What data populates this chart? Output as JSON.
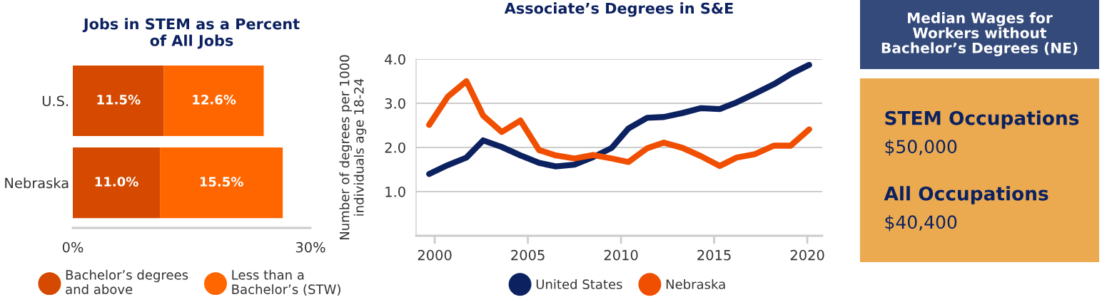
{
  "chart_data": [
    {
      "type": "bar",
      "title": "Jobs in STEM as a Percent\nof All Jobs",
      "orientation": "horizontal",
      "stacked": true,
      "categories": [
        "U.S.",
        "Nebraska"
      ],
      "series": [
        {
          "name": "Bachelor’s degrees\nand above",
          "color": "#d54a00",
          "values": [
            11.5,
            11.0
          ],
          "value_labels": [
            "11.5%",
            "11.0%"
          ]
        },
        {
          "name": "Less than a\nBachelor’s (STW)",
          "color": "#ff6600",
          "values": [
            12.6,
            15.5
          ],
          "value_labels": [
            "12.6%",
            "15.5%"
          ]
        }
      ],
      "xlim": [
        0,
        30
      ],
      "xticks": [
        {
          "value": 0,
          "label": "0%"
        },
        {
          "value": 30,
          "label": "30%"
        }
      ],
      "grid": false,
      "legend": "bottom"
    },
    {
      "type": "line",
      "title": "Associate’s Degrees in S&E",
      "ylabel": "Number of degrees per 1000\nindividuals age 18-24",
      "x": [
        1999.7,
        2000.7,
        2001.7,
        2002.6,
        2003.6,
        2004.6,
        2005.6,
        2006.5,
        2007.5,
        2008.5,
        2009.5,
        2010.4,
        2011.4,
        2012.3,
        2013.3,
        2014.3,
        2015.3,
        2016.2,
        2017.2,
        2018.2,
        2019.1,
        2020.1
      ],
      "series": [
        {
          "name": "United States",
          "color": "#0c2160",
          "values": [
            1.4,
            1.6,
            1.77,
            2.16,
            2.01,
            1.82,
            1.65,
            1.57,
            1.61,
            1.78,
            1.99,
            2.43,
            2.67,
            2.69,
            2.78,
            2.89,
            2.87,
            3.02,
            3.22,
            3.43,
            3.66,
            3.87
          ]
        },
        {
          "name": "Nebraska",
          "color": "#f04e00",
          "values": [
            2.51,
            3.15,
            3.5,
            2.72,
            2.35,
            2.61,
            1.94,
            1.82,
            1.75,
            1.83,
            1.75,
            1.67,
            1.98,
            2.11,
            1.99,
            1.8,
            1.58,
            1.77,
            1.85,
            2.04,
            2.04,
            2.41
          ]
        }
      ],
      "xlim": [
        1999,
        2020.8
      ],
      "xticks": [
        2000,
        2005,
        2010,
        2015,
        2020
      ],
      "ylim": [
        0,
        4.0
      ],
      "yticks": [
        {
          "value": 1,
          "label": "1.0"
        },
        {
          "value": 2,
          "label": "2.0"
        },
        {
          "value": 3,
          "label": "3.0"
        },
        {
          "value": 4,
          "label": "4.0"
        }
      ],
      "grid": "y",
      "legend": "bottom",
      "marker": "none",
      "line_style": "solid"
    },
    {
      "type": "other",
      "title": "Median Wages for\nWorkers without\nBachelor’s Degrees (NE)",
      "annotations": [
        "STEM Occupations",
        "$50,000",
        "All Occupations",
        "$40,400"
      ]
    }
  ]
}
